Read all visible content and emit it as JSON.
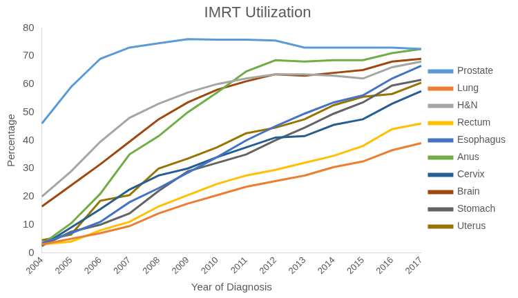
{
  "chart_data": {
    "type": "line",
    "title": "IMRT Utilization",
    "x_label": "Year of Diagnosis",
    "y_label": "Percentage",
    "categories": [
      "2004",
      "2005",
      "2006",
      "2007",
      "2008",
      "2009",
      "2010",
      "2011",
      "2012",
      "2013",
      "2014",
      "2015",
      "2016",
      "2017"
    ],
    "series": [
      {
        "name": "Prostate",
        "color": "#5b9bd5",
        "values": [
          46,
          59,
          69,
          73,
          74.5,
          76,
          75.8,
          75.8,
          75.5,
          73,
          73,
          73,
          73,
          72.5
        ]
      },
      {
        "name": "Lung",
        "color": "#ed7d31",
        "values": [
          3,
          5,
          7,
          9.5,
          14,
          17.5,
          20.5,
          23.5,
          25.5,
          27.5,
          30.5,
          32.5,
          36.5,
          39
        ]
      },
      {
        "name": "H&N",
        "color": "#a5a5a5",
        "values": [
          20,
          29,
          39.5,
          48,
          53,
          57,
          60,
          62,
          63.5,
          63.5,
          63,
          62,
          66,
          68
        ]
      },
      {
        "name": "Rectum",
        "color": "#ffc000",
        "values": [
          3,
          4,
          8,
          11,
          16.5,
          20.5,
          24.5,
          27.5,
          29.5,
          32,
          34.5,
          38,
          44,
          46
        ]
      },
      {
        "name": "Esophagus",
        "color": "#4472c4",
        "values": [
          3.5,
          7,
          11,
          18,
          23,
          28.5,
          34,
          40,
          45,
          49.5,
          53.5,
          56,
          62,
          66.5
        ]
      },
      {
        "name": "Anus",
        "color": "#70ad47",
        "values": [
          3,
          10.5,
          21,
          35,
          41.5,
          50,
          57,
          64.5,
          68.5,
          68,
          68.5,
          68.5,
          71,
          72.5
        ]
      },
      {
        "name": "Cervix",
        "color": "#255e91",
        "values": [
          2.5,
          9,
          15.5,
          22.5,
          27.5,
          30,
          34,
          37.5,
          41,
          41.5,
          45.5,
          47.5,
          53,
          57.5
        ]
      },
      {
        "name": "Brain",
        "color": "#9e480e",
        "values": [
          16.5,
          24,
          31.5,
          39.5,
          47.5,
          53.5,
          58,
          61,
          63.5,
          63,
          64,
          65,
          68,
          69
        ]
      },
      {
        "name": "Stomach",
        "color": "#636363",
        "values": [
          2.5,
          7.5,
          10,
          14,
          22,
          29,
          32,
          35,
          40,
          44.5,
          49.5,
          53.5,
          59.5,
          61.5
        ]
      },
      {
        "name": "Uterus",
        "color": "#997300",
        "values": [
          4.5,
          6.5,
          18.5,
          20.5,
          30,
          33.5,
          37.5,
          42.5,
          44.5,
          47.5,
          52.5,
          55.5,
          56.5,
          60.5
        ]
      }
    ],
    "ylim": [
      0,
      80
    ],
    "yticks": [
      0,
      10,
      20,
      30,
      40,
      50,
      60,
      70,
      80
    ],
    "grid": false,
    "legend": "right"
  }
}
